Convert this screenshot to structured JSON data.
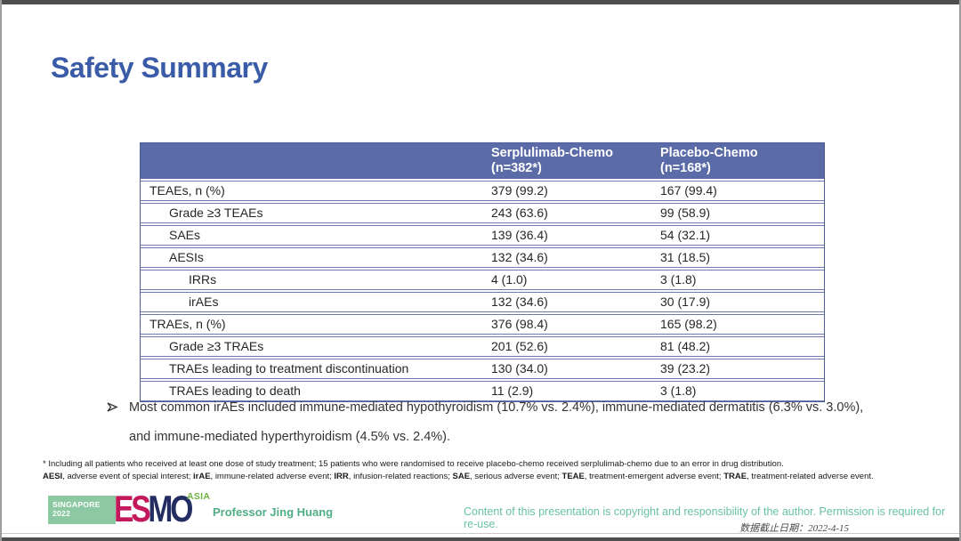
{
  "slide": {
    "title": "Safety Summary"
  },
  "table": {
    "header": {
      "col2_line1": "Serplulimab-Chemo",
      "col2_line2": "(n=382*)",
      "col3_line1": "Placebo-Chemo",
      "col3_line2": "(n=168*)"
    },
    "rows": [
      {
        "label": "TEAEs, n (%)",
        "indent": 0,
        "serplulimab": "379 (99.2)",
        "placebo": "167 (99.4)"
      },
      {
        "label": "Grade ≥3 TEAEs",
        "indent": 1,
        "serplulimab": "243 (63.6)",
        "placebo": "99 (58.9)"
      },
      {
        "label": "SAEs",
        "indent": 1,
        "serplulimab": "139 (36.4)",
        "placebo": "54 (32.1)"
      },
      {
        "label": "AESIs",
        "indent": 1,
        "serplulimab": "132 (34.6)",
        "placebo": "31 (18.5)"
      },
      {
        "label": "IRRs",
        "indent": 2,
        "serplulimab": "4 (1.0)",
        "placebo": "3 (1.8)"
      },
      {
        "label": "irAEs",
        "indent": 2,
        "serplulimab": "132 (34.6)",
        "placebo": "30 (17.9)"
      },
      {
        "label": "TRAEs, n (%)",
        "indent": 0,
        "serplulimab": "376 (98.4)",
        "placebo": "165 (98.2)"
      },
      {
        "label": "Grade ≥3 TRAEs",
        "indent": 1,
        "serplulimab": "201 (52.6)",
        "placebo": "81 (48.2)"
      },
      {
        "label": "TRAEs leading to treatment discontinuation",
        "indent": 1,
        "serplulimab": "130 (34.0)",
        "placebo": "39 (23.2)"
      },
      {
        "label": "TRAEs leading to death",
        "indent": 1,
        "serplulimab": "11 (2.9)",
        "placebo": "3 (1.8)"
      }
    ]
  },
  "bullet": {
    "marker": "➢",
    "text": "Most common irAEs included immune-mediated hypothyroidism (10.7% vs. 2.4%), immune-mediated dermatitis (6.3% vs. 3.0%), and immune-mediated hyperthyroidism (4.5% vs. 2.4%)."
  },
  "footnotes": {
    "line1": "* Including all patients who received at least one dose of study treatment; 15 patients who were randomised to receive placebo-chemo received serplulimab-chemo due to an error in drug distribution.",
    "line2_segments": [
      {
        "text": "AESI",
        "bold": true
      },
      {
        "text": ", adverse event of special interest; ",
        "bold": false
      },
      {
        "text": "irAE",
        "bold": true
      },
      {
        "text": ", immune-related adverse event; ",
        "bold": false
      },
      {
        "text": "IRR",
        "bold": true
      },
      {
        "text": ", infusion-related reactions; ",
        "bold": false
      },
      {
        "text": "SAE",
        "bold": true
      },
      {
        "text": ", serious adverse event; ",
        "bold": false
      },
      {
        "text": "TEAE",
        "bold": true
      },
      {
        "text": ", treatment-emergent adverse event; ",
        "bold": false
      },
      {
        "text": "TRAE",
        "bold": true
      },
      {
        "text": ", treatment-related adverse event.",
        "bold": false
      }
    ]
  },
  "footer": {
    "logo": {
      "badge_line1": "SINGAPORE",
      "badge_line2": "2022",
      "letters": [
        {
          "char": "E",
          "color": "#c4185c"
        },
        {
          "char": "S",
          "color": "#c4185c"
        },
        {
          "char": "M",
          "color": "#232d62"
        },
        {
          "char": "O",
          "color": "#232d62"
        }
      ],
      "suffix": "ASIA"
    },
    "presenter": "Professor Jing Huang",
    "copyright": "Content of this presentation is copyright and responsibility of the author. Permission is required for re-use.",
    "data_cutoff": "数据截止日期：2022-4-15"
  },
  "colors": {
    "title-blue": "#3a5ba8",
    "table-header-bg": "#5b6ba8",
    "table-border": "#6e7ab0",
    "table-outer-border": "#4d5b96",
    "body-text": "#262626",
    "green-presenter": "#4fae85",
    "green-copyright": "#68c2a1",
    "badge-green": "#8cc9a3",
    "asia-green": "#6cb33f",
    "esmo-crimson": "#c4185c",
    "esmo-navy": "#232d62",
    "letterbox-gray": "#4e4e4e"
  }
}
